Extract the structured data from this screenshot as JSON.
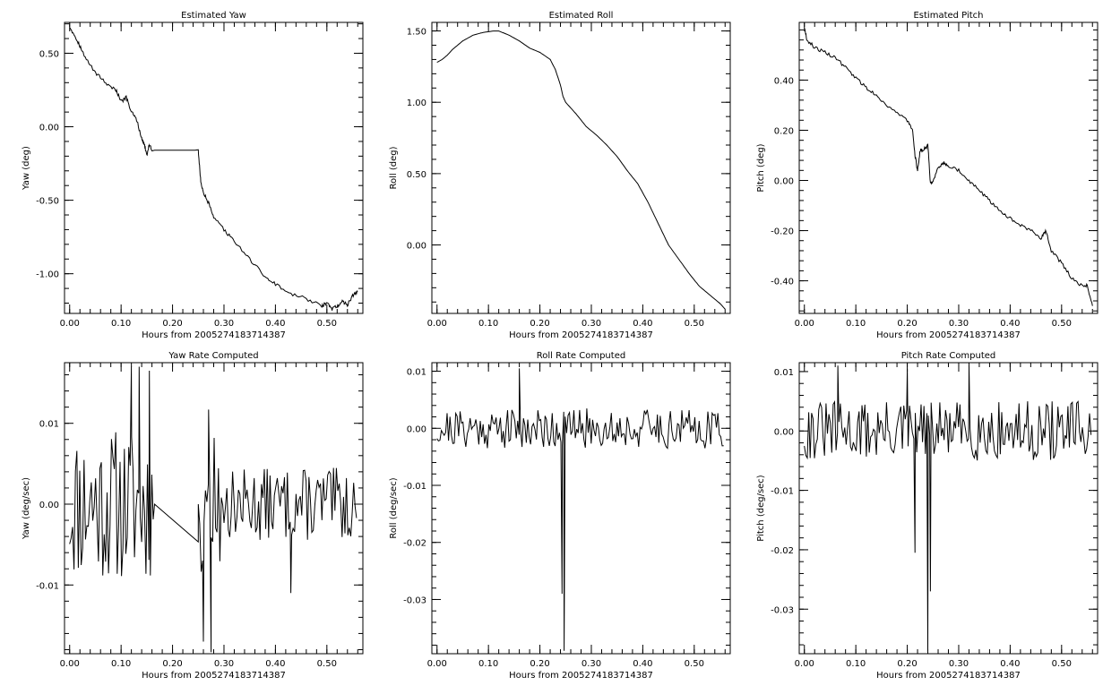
{
  "chart_data": [
    {
      "type": "line",
      "title": "Estimated Yaw",
      "xlabel": "Hours from 2005274183714387",
      "ylabel": "Yaw (deg)",
      "xlim": [
        -0.01,
        0.57
      ],
      "ylim": [
        -1.27,
        0.71
      ],
      "xticks": [
        0.0,
        0.1,
        0.2,
        0.3,
        0.4,
        0.5
      ],
      "xtick_labels": [
        "0.00",
        "0.10",
        "0.20",
        "0.30",
        "0.40",
        "0.50"
      ],
      "yticks": [
        0.5,
        0.0,
        -0.5,
        -1.0
      ],
      "ytick_labels": [
        "0.50",
        "0.00",
        "-0.50",
        "-1.00"
      ],
      "series": [
        {
          "x": [
            0.0,
            0.01,
            0.02,
            0.03,
            0.05,
            0.07,
            0.09,
            0.1,
            0.11,
            0.12,
            0.13,
            0.14,
            0.145,
            0.15,
            0.155,
            0.16,
            0.2,
            0.25,
            0.255,
            0.26,
            0.27,
            0.28,
            0.3,
            0.32,
            0.35,
            0.38,
            0.4,
            0.43,
            0.46,
            0.49,
            0.5,
            0.51,
            0.52,
            0.53,
            0.54,
            0.55,
            0.56
          ],
          "y": [
            0.68,
            0.62,
            0.55,
            0.47,
            0.37,
            0.3,
            0.25,
            0.17,
            0.2,
            0.1,
            0.05,
            -0.08,
            -0.12,
            -0.19,
            -0.12,
            -0.16,
            -0.16,
            -0.16,
            -0.38,
            -0.45,
            -0.52,
            -0.62,
            -0.7,
            -0.78,
            -0.9,
            -1.02,
            -1.07,
            -1.14,
            -1.17,
            -1.22,
            -1.2,
            -1.24,
            -1.22,
            -1.19,
            -1.21,
            -1.15,
            -1.12
          ]
        }
      ]
    },
    {
      "type": "line",
      "title": "Estimated Roll",
      "xlabel": "Hours from 2005274183714387",
      "ylabel": "Roll (deg)",
      "xlim": [
        -0.01,
        0.57
      ],
      "ylim": [
        -0.48,
        1.56
      ],
      "xticks": [
        0.0,
        0.1,
        0.2,
        0.3,
        0.4,
        0.5
      ],
      "xtick_labels": [
        "0.00",
        "0.10",
        "0.20",
        "0.30",
        "0.40",
        "0.50"
      ],
      "yticks": [
        1.5,
        1.0,
        0.5,
        0.0
      ],
      "ytick_labels": [
        "1.50",
        "1.00",
        "0.50",
        "0.00"
      ],
      "series": [
        {
          "x": [
            0.0,
            0.01,
            0.02,
            0.03,
            0.05,
            0.07,
            0.09,
            0.11,
            0.12,
            0.14,
            0.16,
            0.18,
            0.2,
            0.22,
            0.23,
            0.24,
            0.245,
            0.25,
            0.27,
            0.29,
            0.31,
            0.33,
            0.35,
            0.37,
            0.39,
            0.41,
            0.43,
            0.45,
            0.47,
            0.49,
            0.51,
            0.53,
            0.55,
            0.56
          ],
          "y": [
            1.28,
            1.3,
            1.33,
            1.37,
            1.43,
            1.47,
            1.49,
            1.5,
            1.5,
            1.47,
            1.43,
            1.38,
            1.35,
            1.3,
            1.23,
            1.12,
            1.04,
            1.0,
            0.92,
            0.83,
            0.77,
            0.7,
            0.62,
            0.52,
            0.43,
            0.3,
            0.15,
            0.0,
            -0.1,
            -0.2,
            -0.29,
            -0.35,
            -0.41,
            -0.45
          ]
        }
      ]
    },
    {
      "type": "line",
      "title": "Estimated Pitch",
      "xlabel": "Hours from 2005274183714387",
      "ylabel": "Pitch (deg)",
      "xlim": [
        -0.01,
        0.57
      ],
      "ylim": [
        -0.53,
        0.63
      ],
      "xticks": [
        0.0,
        0.1,
        0.2,
        0.3,
        0.4,
        0.5
      ],
      "xtick_labels": [
        "0.00",
        "0.10",
        "0.20",
        "0.30",
        "0.40",
        "0.50"
      ],
      "yticks": [
        0.4,
        0.2,
        0.0,
        -0.2,
        -0.4
      ],
      "ytick_labels": [
        "0.40",
        "0.20",
        "0.00",
        "-0.20",
        "-0.40"
      ],
      "series": [
        {
          "x": [
            0.0,
            0.005,
            0.02,
            0.04,
            0.06,
            0.08,
            0.1,
            0.12,
            0.14,
            0.16,
            0.18,
            0.2,
            0.21,
            0.215,
            0.22,
            0.225,
            0.23,
            0.24,
            0.245,
            0.25,
            0.26,
            0.27,
            0.28,
            0.3,
            0.32,
            0.34,
            0.36,
            0.38,
            0.4,
            0.42,
            0.44,
            0.46,
            0.47,
            0.48,
            0.5,
            0.52,
            0.54,
            0.55,
            0.56
          ],
          "y": [
            0.61,
            0.56,
            0.53,
            0.51,
            0.49,
            0.45,
            0.41,
            0.37,
            0.34,
            0.3,
            0.27,
            0.24,
            0.2,
            0.1,
            0.04,
            0.12,
            0.12,
            0.14,
            -0.01,
            0.0,
            0.05,
            0.07,
            0.06,
            0.04,
            0.0,
            -0.04,
            -0.08,
            -0.12,
            -0.15,
            -0.18,
            -0.2,
            -0.23,
            -0.2,
            -0.28,
            -0.33,
            -0.39,
            -0.42,
            -0.42,
            -0.5
          ]
        }
      ]
    },
    {
      "type": "line",
      "title": "Yaw Rate Computed",
      "xlabel": "Hours from 2005274183714387",
      "ylabel": "Yaw (deg/sec)",
      "xlim": [
        -0.01,
        0.57
      ],
      "ylim": [
        -0.0185,
        0.0175
      ],
      "xticks": [
        0.0,
        0.1,
        0.2,
        0.3,
        0.4,
        0.5
      ],
      "xtick_labels": [
        "0.00",
        "0.10",
        "0.20",
        "0.30",
        "0.40",
        "0.50"
      ],
      "yticks": [
        0.01,
        0.0,
        -0.01
      ],
      "ytick_labels": [
        "0.01",
        "0.00",
        "-0.01"
      ],
      "noise_segments": [
        {
          "x_range": [
            0.0,
            0.165
          ],
          "amplitude": 0.0095,
          "seed": 11
        },
        {
          "x_range": [
            0.25,
            0.3
          ],
          "amplitude": 0.009,
          "seed": 12
        },
        {
          "x_range": [
            0.3,
            0.56
          ],
          "amplitude": 0.0045,
          "seed": 13
        }
      ],
      "flat_segment": {
        "x_range": [
          0.165,
          0.25
        ],
        "y": 0.0
      },
      "spikes": [
        {
          "x": 0.12,
          "y": 0.017
        },
        {
          "x": 0.135,
          "y": 0.017
        },
        {
          "x": 0.155,
          "y": 0.0165
        },
        {
          "x": 0.27,
          "y": 0.0117
        },
        {
          "x": 0.26,
          "y": -0.017
        },
        {
          "x": 0.275,
          "y": -0.0183
        },
        {
          "x": 0.43,
          "y": -0.011
        }
      ]
    },
    {
      "type": "line",
      "title": "Roll Rate Computed",
      "xlabel": "Hours from 2005274183714387",
      "ylabel": "Roll (deg/sec)",
      "xlim": [
        -0.01,
        0.57
      ],
      "ylim": [
        -0.0395,
        0.0115
      ],
      "xticks": [
        0.0,
        0.1,
        0.2,
        0.3,
        0.4,
        0.5
      ],
      "xtick_labels": [
        "0.00",
        "0.10",
        "0.20",
        "0.30",
        "0.40",
        "0.50"
      ],
      "yticks": [
        0.01,
        0.0,
        -0.01,
        -0.02,
        -0.03
      ],
      "ytick_labels": [
        "0.01",
        "0.00",
        "-0.01",
        "-0.02",
        "-0.03"
      ],
      "noise_segments": [
        {
          "x_range": [
            0.0,
            0.56
          ],
          "amplitude": 0.0035,
          "seed": 21
        }
      ],
      "spikes": [
        {
          "x": 0.16,
          "y": 0.0105
        },
        {
          "x": 0.243,
          "y": -0.029
        },
        {
          "x": 0.247,
          "y": -0.039
        }
      ]
    },
    {
      "type": "line",
      "title": "Pitch Rate Computed",
      "xlabel": "Hours from 2005274183714387",
      "ylabel": "Pitch (deg/sec)",
      "xlim": [
        -0.01,
        0.57
      ],
      "ylim": [
        -0.0375,
        0.0115
      ],
      "xticks": [
        0.0,
        0.1,
        0.2,
        0.3,
        0.4,
        0.5
      ],
      "xtick_labels": [
        "0.00",
        "0.10",
        "0.20",
        "0.30",
        "0.40",
        "0.50"
      ],
      "yticks": [
        0.01,
        0.0,
        -0.01,
        -0.02,
        -0.03
      ],
      "ytick_labels": [
        "0.01",
        "0.00",
        "-0.01",
        "-0.02",
        "-0.03"
      ],
      "noise_segments": [
        {
          "x_range": [
            0.0,
            0.56
          ],
          "amplitude": 0.005,
          "seed": 31
        }
      ],
      "spikes": [
        {
          "x": 0.065,
          "y": 0.011
        },
        {
          "x": 0.2,
          "y": 0.0105
        },
        {
          "x": 0.32,
          "y": 0.011
        },
        {
          "x": 0.215,
          "y": -0.0205
        },
        {
          "x": 0.24,
          "y": -0.037
        },
        {
          "x": 0.245,
          "y": -0.027
        }
      ]
    }
  ]
}
